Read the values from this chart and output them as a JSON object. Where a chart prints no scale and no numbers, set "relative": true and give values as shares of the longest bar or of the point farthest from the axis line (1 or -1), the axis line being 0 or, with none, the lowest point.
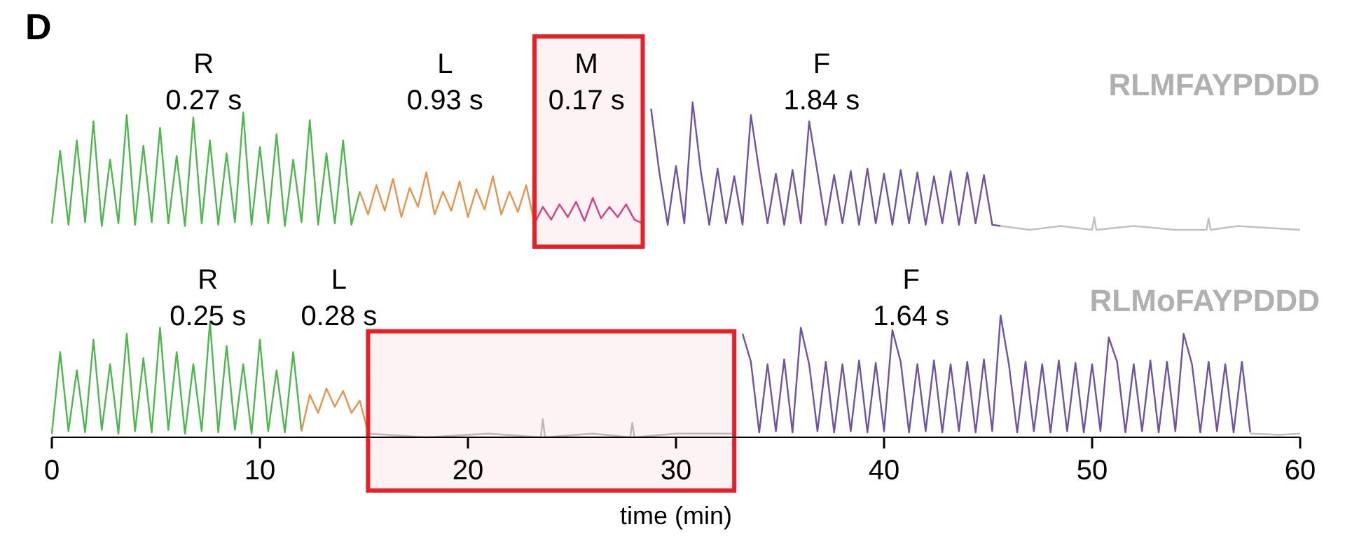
{
  "chart_data": [
    {
      "type": "line",
      "title": "D",
      "relative": true,
      "xlim": [
        0,
        60
      ],
      "tick_labels": false,
      "grid": false,
      "marker": "none",
      "line_style": "solid",
      "annotations": [
        "R",
        "0.27 s",
        "L",
        "0.93 s",
        "M",
        "0.17 s",
        "F",
        "1.84 s",
        "RLMFAYPDDD"
      ],
      "bands": [
        {
          "axis": "x",
          "from": 23.2,
          "to": 28.4,
          "color": "#ee1c25"
        }
      ],
      "series": [
        {
          "color": "#4cb84c",
          "x": [
            0,
            0.4,
            0.8,
            1.2,
            1.6,
            2,
            2.4,
            2.8,
            3.2,
            3.6,
            4,
            4.4,
            4.8,
            5.2,
            5.6,
            6,
            6.4,
            6.8,
            7.2,
            7.6,
            8,
            8.4,
            8.8,
            9.2,
            9.6,
            10,
            10.4,
            10.8,
            11.2,
            11.6,
            12,
            12.4,
            12.8,
            13.2,
            13.6,
            14,
            14.4,
            14.8
          ],
          "values": [
            0.05,
            0.62,
            0.04,
            0.7,
            0.06,
            0.85,
            0.03,
            0.55,
            0.05,
            0.9,
            0.04,
            0.66,
            0.06,
            0.8,
            0.05,
            0.58,
            0.03,
            0.88,
            0.05,
            0.7,
            0.04,
            0.6,
            0.06,
            0.92,
            0.04,
            0.65,
            0.05,
            0.75,
            0.03,
            0.55,
            0.06,
            0.86,
            0.04,
            0.6,
            0.05,
            0.7,
            0.04,
            0.3
          ]
        },
        {
          "color": "#e8924a",
          "x": [
            14.8,
            15.2,
            15.6,
            16,
            16.4,
            16.8,
            17.2,
            17.6,
            18,
            18.4,
            18.8,
            19.2,
            19.6,
            20,
            20.4,
            20.8,
            21.2,
            21.6,
            22,
            22.4,
            22.8,
            23.2
          ],
          "values": [
            0.3,
            0.12,
            0.35,
            0.15,
            0.4,
            0.1,
            0.33,
            0.18,
            0.45,
            0.12,
            0.3,
            0.15,
            0.38,
            0.1,
            0.32,
            0.16,
            0.42,
            0.12,
            0.3,
            0.14,
            0.35,
            0.05
          ]
        },
        {
          "color": "#d6408f",
          "x": [
            23.2,
            23.6,
            24,
            24.4,
            24.8,
            25.2,
            25.6,
            26,
            26.4,
            26.8,
            27.2,
            27.6,
            28,
            28.4
          ],
          "values": [
            0.05,
            0.18,
            0.08,
            0.2,
            0.1,
            0.22,
            0.07,
            0.25,
            0.09,
            0.18,
            0.1,
            0.2,
            0.08,
            0.05
          ]
        },
        {
          "color": "#6f52a3",
          "x": [
            28.8,
            29.2,
            29.6,
            30,
            30.4,
            30.8,
            31.2,
            31.6,
            32,
            32.4,
            32.8,
            33.2,
            33.6,
            34,
            34.4,
            34.8,
            35.2,
            35.6,
            36,
            36.4,
            36.8,
            37.2,
            37.6,
            38,
            38.4,
            38.8,
            39.2,
            39.6,
            40,
            40.4,
            40.8,
            41.2,
            41.6,
            42,
            42.4,
            42.8,
            43.2,
            43.6,
            44,
            44.4,
            44.8,
            45.2,
            45.6
          ],
          "values": [
            0.95,
            0.45,
            0.04,
            0.5,
            0.05,
            1,
            0.45,
            0.04,
            0.48,
            0.05,
            0.42,
            0.04,
            0.9,
            0.46,
            0.05,
            0.44,
            0.04,
            0.47,
            0.05,
            0.85,
            0.45,
            0.04,
            0.43,
            0.05,
            0.46,
            0.04,
            0.48,
            0.05,
            0.44,
            0.04,
            0.47,
            0.05,
            0.45,
            0.04,
            0.42,
            0.05,
            0.46,
            0.04,
            0.45,
            0.05,
            0.43,
            0.04,
            0.03
          ]
        },
        {
          "color": "#c0c0c0",
          "x": [
            45.6,
            47,
            48.5,
            50,
            50.1,
            50.2,
            52,
            54,
            55.5,
            55.6,
            55.7,
            57,
            60
          ],
          "values": [
            0.03,
            0,
            0.03,
            0,
            0.1,
            0,
            0.03,
            0,
            0,
            0.09,
            0,
            0.03,
            0
          ]
        }
      ]
    },
    {
      "type": "line",
      "relative": true,
      "xlim": [
        0,
        60
      ],
      "xticks": [
        0,
        10,
        20,
        30,
        40,
        50,
        60
      ],
      "xlabel": "time (min)",
      "tick_labels": "x",
      "grid": false,
      "marker": "none",
      "line_style": "solid",
      "annotations": [
        "R",
        "0.25 s",
        "L",
        "0.28 s",
        "F",
        "1.64 s",
        "RLMoFAYPDDD"
      ],
      "bands": [
        {
          "axis": "x",
          "from": 15.2,
          "to": 32.8,
          "color": "#ee1c25"
        }
      ],
      "series": [
        {
          "color": "#4cb84c",
          "x": [
            0,
            0.4,
            0.8,
            1.2,
            1.6,
            2,
            2.4,
            2.8,
            3.2,
            3.6,
            4,
            4.4,
            4.8,
            5.2,
            5.6,
            6,
            6.4,
            6.8,
            7.2,
            7.6,
            8,
            8.4,
            8.8,
            9.2,
            9.6,
            10,
            10.4,
            10.8,
            11.2,
            11.6,
            12
          ],
          "values": [
            0.03,
            0.7,
            0.05,
            0.55,
            0.04,
            0.8,
            0.06,
            0.6,
            0.03,
            0.85,
            0.05,
            0.65,
            0.04,
            0.9,
            0.06,
            0.7,
            0.03,
            0.6,
            0.05,
            0.95,
            0.04,
            0.75,
            0.06,
            0.6,
            0.03,
            0.8,
            0.05,
            0.55,
            0.04,
            0.7,
            0.05
          ]
        },
        {
          "color": "#e8924a",
          "x": [
            12,
            12.4,
            12.8,
            13.2,
            13.6,
            14,
            14.4,
            14.8,
            15.2
          ],
          "values": [
            0.05,
            0.35,
            0.2,
            0.4,
            0.25,
            0.38,
            0.2,
            0.3,
            0.04
          ]
        },
        {
          "color": "#c0c0c0",
          "x": [
            15.2,
            18,
            21,
            23.5,
            23.6,
            23.7,
            26,
            27.8,
            27.9,
            28,
            30,
            32.8
          ],
          "values": [
            0.03,
            0,
            0.03,
            0,
            0.15,
            0,
            0.03,
            0,
            0.12,
            0,
            0.03,
            0.03
          ]
        },
        {
          "color": "#6f52a3",
          "x": [
            33.2,
            33.6,
            34,
            34.4,
            34.8,
            35.2,
            35.6,
            36,
            36.4,
            36.8,
            37.2,
            37.6,
            38,
            38.4,
            38.8,
            39.2,
            39.6,
            40,
            40.4,
            40.8,
            41.2,
            41.6,
            42,
            42.4,
            42.8,
            43.2,
            43.6,
            44,
            44.4,
            44.8,
            45.2,
            45.6,
            46,
            46.4,
            46.8,
            47.2,
            47.6,
            48,
            48.4,
            48.8,
            49.2,
            49.6,
            50,
            50.4,
            50.8,
            51.2,
            51.6,
            52,
            52.4,
            52.8,
            53.2,
            53.6,
            54,
            54.4,
            54.8,
            55.2,
            55.6,
            56,
            56.4,
            56.8,
            57.2,
            57.6
          ],
          "values": [
            0.85,
            0.62,
            0.04,
            0.6,
            0.05,
            0.64,
            0.04,
            0.9,
            0.6,
            0.05,
            0.62,
            0.04,
            0.6,
            0.05,
            0.63,
            0.04,
            0.61,
            0.05,
            0.88,
            0.62,
            0.04,
            0.6,
            0.05,
            0.63,
            0.04,
            0.6,
            0.05,
            0.62,
            0.04,
            0.64,
            0.05,
            1,
            0.6,
            0.04,
            0.62,
            0.05,
            0.6,
            0.04,
            0.63,
            0.05,
            0.61,
            0.04,
            0.6,
            0.05,
            0.82,
            0.62,
            0.04,
            0.6,
            0.05,
            0.63,
            0.04,
            0.62,
            0.05,
            0.85,
            0.6,
            0.04,
            0.62,
            0.05,
            0.6,
            0.04,
            0.62,
            0.04
          ]
        },
        {
          "color": "#c0c0c0",
          "x": [
            57.6,
            59,
            60
          ],
          "values": [
            0.03,
            0.02,
            0.03
          ]
        }
      ]
    }
  ]
}
